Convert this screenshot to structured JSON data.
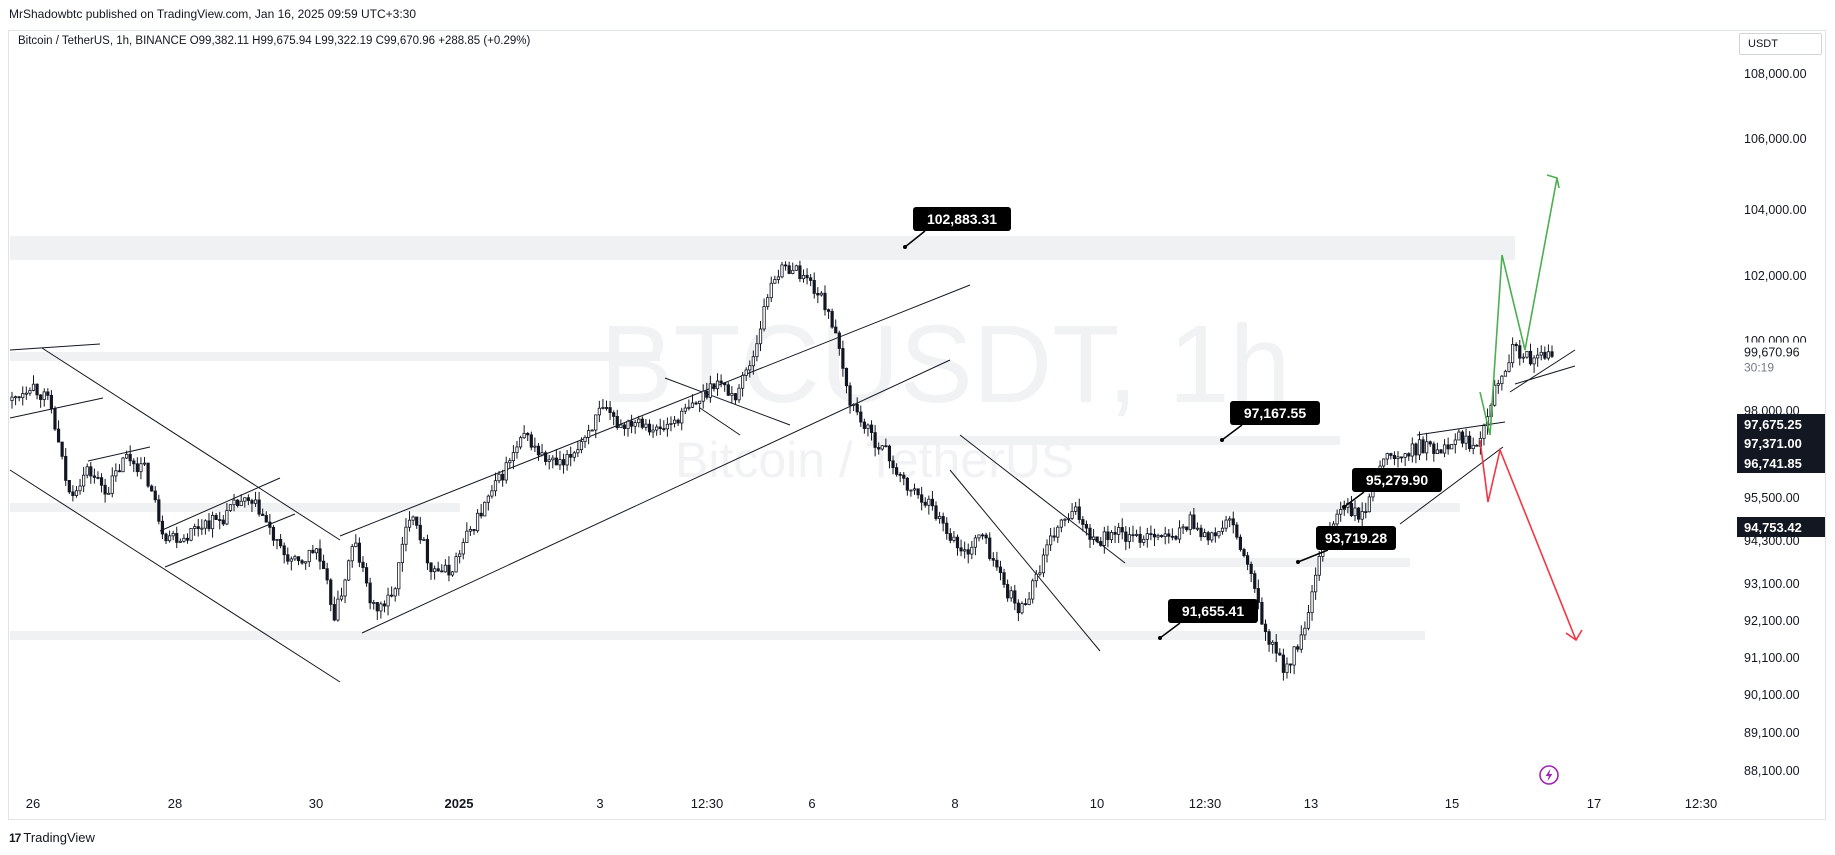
{
  "header": {
    "publish_line": "MrShadowbtc published on TradingView.com, Jan 16, 2025 09:59 UTC+3:30",
    "symbol_line": "Bitcoin / TetherUS, 1h, BINANCE  O99,382.11  H99,675.94  L99,322.19  C99,670.96  +288.85 (+0.29%)"
  },
  "currency": "USDT",
  "watermark": {
    "main": "BTCUSDT, 1h",
    "sub": "Bitcoin / TetherUS"
  },
  "footer": {
    "brand_logo": "17",
    "brand_name": "TradingView"
  },
  "colors": {
    "candle": "#131722",
    "bull_arrow": "#4caf50",
    "bear_arrow": "#f23645",
    "zone": "#f0f1f3",
    "label_bg": "#000000",
    "price_axis": "#131722",
    "countdown": "#787b86"
  },
  "chart_data": {
    "type": "candlestick",
    "symbol": "BTCUSDT",
    "timeframe": "1h",
    "exchange": "BINANCE",
    "y_axis_ticks": [
      108000,
      106000,
      104000,
      102000,
      100000,
      98000,
      95500,
      94300,
      93100,
      92100,
      91100,
      90100,
      89100,
      88100
    ],
    "y_axis_labels": [
      "108,000.00",
      "106,000.00",
      "104,000.00",
      "102,000.00",
      "100,000.00",
      "98,000.00",
      "95,500.00",
      "94,300.00",
      "93,100.00",
      "92,100.00",
      "91,100.00",
      "90,100.00",
      "89,100.00",
      "88,100.00"
    ],
    "x_axis_labels": [
      "26",
      "28",
      "30",
      "2025",
      "3",
      "12:30",
      "6",
      "8",
      "10",
      "12:30",
      "13",
      "15",
      "17",
      "12:30"
    ],
    "current_price": {
      "label": "99,670.96",
      "value": 99670.96,
      "countdown": "30:19"
    },
    "axis_price_tags": [
      {
        "label": "97,675.25",
        "value": 97675.25
      },
      {
        "label": "97,371.00",
        "value": 97371.0
      },
      {
        "label": "96,741.85",
        "value": 96741.85
      },
      {
        "label": "94,753.42",
        "value": 94753.42
      }
    ],
    "annotations": [
      {
        "label": "102,883.31",
        "value": 102883.31
      },
      {
        "label": "97,167.55",
        "value": 97167.55
      },
      {
        "label": "95,279.90",
        "value": 95279.9
      },
      {
        "label": "93,719.28",
        "value": 93719.28
      },
      {
        "label": "91,655.41",
        "value": 91655.41
      }
    ],
    "price_path": [
      {
        "t": "Dec 26",
        "p": 98300
      },
      {
        "t": "Dec 26",
        "p": 98800
      },
      {
        "t": "Dec 26",
        "p": 98200
      },
      {
        "t": "Dec 27",
        "p": 95600
      },
      {
        "t": "Dec 27",
        "p": 96300
      },
      {
        "t": "Dec 27",
        "p": 95700
      },
      {
        "t": "Dec 27",
        "p": 96700
      },
      {
        "t": "Dec 27",
        "p": 96300
      },
      {
        "t": "Dec 28",
        "p": 94500
      },
      {
        "t": "Dec 28",
        "p": 94400
      },
      {
        "t": "Dec 28",
        "p": 94800
      },
      {
        "t": "Dec 29",
        "p": 94900
      },
      {
        "t": "Dec 29",
        "p": 95400
      },
      {
        "t": "Dec 29",
        "p": 95200
      },
      {
        "t": "Dec 30",
        "p": 94100
      },
      {
        "t": "Dec 30",
        "p": 93600
      },
      {
        "t": "Dec 30",
        "p": 94100
      },
      {
        "t": "Dec 31",
        "p": 92200
      },
      {
        "t": "Dec 31",
        "p": 94300
      },
      {
        "t": "Dec 31",
        "p": 92400
      },
      {
        "t": "Jan 1",
        "p": 92700
      },
      {
        "t": "Jan 1",
        "p": 95300
      },
      {
        "t": "Jan 1",
        "p": 93600
      },
      {
        "t": "Jan 2",
        "p": 93400
      },
      {
        "t": "Jan 2",
        "p": 94500
      },
      {
        "t": "Jan 2",
        "p": 95400
      },
      {
        "t": "Jan 3",
        "p": 96400
      },
      {
        "t": "Jan 3",
        "p": 97300
      },
      {
        "t": "Jan 3",
        "p": 96600
      },
      {
        "t": "Jan 3",
        "p": 96400
      },
      {
        "t": "Jan 4",
        "p": 97200
      },
      {
        "t": "Jan 4",
        "p": 98000
      },
      {
        "t": "Jan 4",
        "p": 97600
      },
      {
        "t": "Jan 5",
        "p": 97800
      },
      {
        "t": "Jan 5",
        "p": 97400
      },
      {
        "t": "Jan 5",
        "p": 97800
      },
      {
        "t": "Jan 6",
        "p": 98200
      },
      {
        "t": "Jan 6",
        "p": 98900
      },
      {
        "t": "Jan 6",
        "p": 98400
      },
      {
        "t": "Jan 6",
        "p": 99600
      },
      {
        "t": "Jan 7",
        "p": 102000
      },
      {
        "t": "Jan 7",
        "p": 102300
      },
      {
        "t": "Jan 7",
        "p": 101800
      },
      {
        "t": "Jan 7",
        "p": 100900
      },
      {
        "t": "Jan 7",
        "p": 98400
      },
      {
        "t": "Jan 8",
        "p": 97400
      },
      {
        "t": "Jan 8",
        "p": 96800
      },
      {
        "t": "Jan 8",
        "p": 95800
      },
      {
        "t": "Jan 8",
        "p": 95500
      },
      {
        "t": "Jan 9",
        "p": 94800
      },
      {
        "t": "Jan 9",
        "p": 93900
      },
      {
        "t": "Jan 9",
        "p": 94500
      },
      {
        "t": "Jan 9",
        "p": 93300
      },
      {
        "t": "Jan 10",
        "p": 92300
      },
      {
        "t": "Jan 10",
        "p": 93500
      },
      {
        "t": "Jan 10",
        "p": 94700
      },
      {
        "t": "Jan 10",
        "p": 95100
      },
      {
        "t": "Jan 11",
        "p": 94300
      },
      {
        "t": "Jan 11",
        "p": 94600
      },
      {
        "t": "Jan 11",
        "p": 94300
      },
      {
        "t": "Jan 12",
        "p": 94600
      },
      {
        "t": "Jan 12",
        "p": 94300
      },
      {
        "t": "Jan 12",
        "p": 94900
      },
      {
        "t": "Jan 13",
        "p": 94300
      },
      {
        "t": "Jan 13",
        "p": 94900
      },
      {
        "t": "Jan 13",
        "p": 93600
      },
      {
        "t": "Jan 13",
        "p": 91600
      },
      {
        "t": "Jan 13",
        "p": 90800
      },
      {
        "t": "Jan 14",
        "p": 91800
      },
      {
        "t": "Jan 14",
        "p": 94300
      },
      {
        "t": "Jan 14",
        "p": 95300
      },
      {
        "t": "Jan 14",
        "p": 94900
      },
      {
        "t": "Jan 15",
        "p": 96700
      },
      {
        "t": "Jan 15",
        "p": 96600
      },
      {
        "t": "Jan 15",
        "p": 97000
      },
      {
        "t": "Jan 15",
        "p": 96900
      },
      {
        "t": "Jan 15",
        "p": 97300
      },
      {
        "t": "Jan 16",
        "p": 97000
      },
      {
        "t": "Jan 16",
        "p": 98700
      },
      {
        "t": "Jan 16",
        "p": 99800
      },
      {
        "t": "Jan 16",
        "p": 99400
      },
      {
        "t": "Jan 16",
        "p": 99670.96
      }
    ]
  }
}
